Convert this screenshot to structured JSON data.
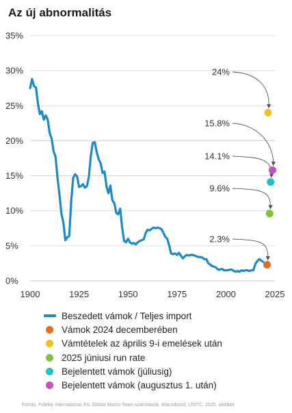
{
  "title": "Az új abnormalitás",
  "source": "Forrás: Fidelity International, FIL Global Macro Team számítások, Macrobond, USITC, 2025. október",
  "colors": {
    "line": "#1a8ac9",
    "grid": "#cfcfcf",
    "arrow": "#555555"
  },
  "chart_data": {
    "type": "line",
    "title": "Az új abnormalitás",
    "xlim": [
      1900,
      2025
    ],
    "ylim": [
      0,
      35
    ],
    "x_ticks": [
      "1900",
      "1925",
      "1950",
      "1975",
      "2000",
      "2025"
    ],
    "x_tick_values": [
      1900,
      1925,
      1950,
      1975,
      2000,
      2025
    ],
    "y_ticks": [
      "0%",
      "5%",
      "10%",
      "15%",
      "20%",
      "25%",
      "30%",
      "35%"
    ],
    "y_tick_values": [
      0,
      5,
      10,
      15,
      20,
      25,
      30,
      35
    ],
    "grid": true,
    "legend_position": "bottom",
    "series": [
      {
        "name": "Beszedett vámok / Teljes import",
        "color": "#1a8ac9",
        "x": [
          1900,
          1901,
          1902,
          1903,
          1904,
          1905,
          1906,
          1907,
          1908,
          1909,
          1910,
          1911,
          1912,
          1913,
          1914,
          1915,
          1916,
          1917,
          1918,
          1919,
          1920,
          1921,
          1922,
          1923,
          1924,
          1925,
          1926,
          1927,
          1928,
          1929,
          1930,
          1931,
          1932,
          1933,
          1934,
          1935,
          1936,
          1937,
          1938,
          1939,
          1940,
          1941,
          1942,
          1943,
          1944,
          1945,
          1946,
          1947,
          1948,
          1949,
          1950,
          1951,
          1952,
          1953,
          1954,
          1955,
          1956,
          1957,
          1958,
          1959,
          1960,
          1961,
          1962,
          1963,
          1964,
          1965,
          1966,
          1967,
          1968,
          1969,
          1970,
          1971,
          1972,
          1973,
          1974,
          1975,
          1976,
          1977,
          1978,
          1979,
          1980,
          1981,
          1982,
          1983,
          1984,
          1985,
          1986,
          1987,
          1988,
          1989,
          1990,
          1991,
          1992,
          1993,
          1994,
          1995,
          1996,
          1997,
          1998,
          1999,
          2000,
          2001,
          2002,
          2003,
          2004,
          2005,
          2006,
          2007,
          2008,
          2009,
          2010,
          2011,
          2012,
          2013,
          2014,
          2015,
          2016,
          2017,
          2018,
          2019
        ],
        "values": [
          27.5,
          28.8,
          27.8,
          27.6,
          25.3,
          23.8,
          24.2,
          23.0,
          23.6,
          23.0,
          21.1,
          20.3,
          18.5,
          17.7,
          14.7,
          12.3,
          9.6,
          8.3,
          5.8,
          6.2,
          6.4,
          11.4,
          14.7,
          15.2,
          14.9,
          13.4,
          13.5,
          13.8,
          13.3,
          13.5,
          14.8,
          17.8,
          19.7,
          19.8,
          18.4,
          17.4,
          16.8,
          15.4,
          15.6,
          13.5,
          12.5,
          13.6,
          11.5,
          11.1,
          9.7,
          9.5,
          10.3,
          7.6,
          5.7,
          5.5,
          6.0,
          5.5,
          5.3,
          5.4,
          5.2,
          5.5,
          5.7,
          5.8,
          5.9,
          6.8,
          7.3,
          7.2,
          7.4,
          7.6,
          7.5,
          7.6,
          7.5,
          7.4,
          6.9,
          6.3,
          6.0,
          5.1,
          3.9,
          3.8,
          3.9,
          3.7,
          4.0,
          3.6,
          3.2,
          3.5,
          3.7,
          3.6,
          3.7,
          3.7,
          3.6,
          3.5,
          3.4,
          3.4,
          3.3,
          3.1,
          3.1,
          2.5,
          2.3,
          2.1,
          2.0,
          1.9,
          1.6,
          1.6,
          1.7,
          1.5,
          1.5,
          1.5,
          1.6,
          1.6,
          1.4,
          1.3,
          1.4,
          1.3,
          1.5,
          1.4,
          1.5,
          1.5,
          1.4,
          1.5,
          1.5,
          2.4,
          2.8,
          3.1,
          2.9,
          2.7
        ]
      }
    ],
    "points": [
      {
        "name": "Vámok 2024 decemberében",
        "x": 2021,
        "y": 2.3,
        "label": "2.3%",
        "color": "#e86b1f"
      },
      {
        "name": "Vámtételek az április 9-i emelések után",
        "x": 2021.5,
        "y": 24.0,
        "label": "24%",
        "color": "#f2c11d"
      },
      {
        "name": "2025 júniusi run rate",
        "x": 2022.3,
        "y": 9.6,
        "label": "9.6%",
        "color": "#7ec43a"
      },
      {
        "name": "Bejelentett vámok (júliusig)",
        "x": 2022.8,
        "y": 14.1,
        "label": "14.1%",
        "color": "#1ec1c9"
      },
      {
        "name": "Bejelentett vámok (augusztus 1. után)",
        "x": 2023.8,
        "y": 15.8,
        "label": "15.8%",
        "color": "#c94cc9"
      }
    ]
  },
  "legend": [
    {
      "label": "Beszedett vámok / Teljes import",
      "color": "#1a8ac9",
      "marker": "line"
    },
    {
      "label": "Vámok 2024 decemberében",
      "color": "#e86b1f",
      "marker": "dot"
    },
    {
      "label": "Vámtételek az április 9-i emelések után",
      "color": "#f2c11d",
      "marker": "dot"
    },
    {
      "label": "2025 júniusi run rate",
      "color": "#7ec43a",
      "marker": "dot"
    },
    {
      "label": "Bejelentett vámok (júliusig)",
      "color": "#1ec1c9",
      "marker": "dot"
    },
    {
      "label": "Bejelentett vámok (augusztus 1. után)",
      "color": "#c94cc9",
      "marker": "dot"
    }
  ]
}
